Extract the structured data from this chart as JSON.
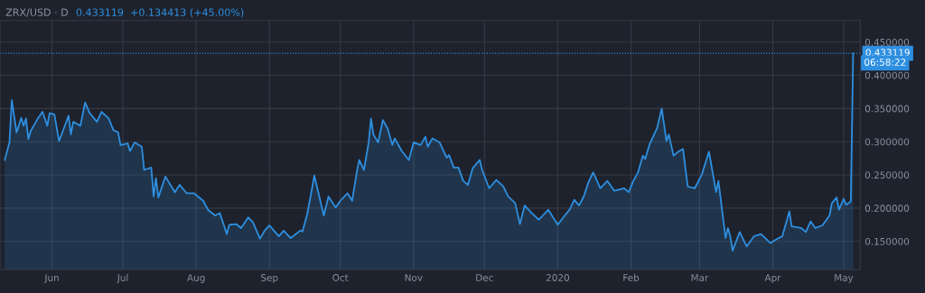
{
  "chart_data": {
    "type": "area",
    "title": "ZRX/USD · D",
    "subtitle": "0.433119  +0.134413 (+45.00%)",
    "x": [
      "2019-05-12",
      "2019-05-14",
      "2019-05-15",
      "2019-05-17",
      "2019-05-19",
      "2019-05-20",
      "2019-05-21",
      "2019-05-22",
      "2019-05-23",
      "2019-05-26",
      "2019-05-28",
      "2019-05-30",
      "2019-05-31",
      "2019-06-02",
      "2019-06-04",
      "2019-06-08",
      "2019-06-09",
      "2019-06-10",
      "2019-06-13",
      "2019-06-15",
      "2019-06-17",
      "2019-06-20",
      "2019-06-22",
      "2019-06-25",
      "2019-06-27",
      "2019-06-29",
      "2019-06-30",
      "2019-07-03",
      "2019-07-04",
      "2019-07-06",
      "2019-07-09",
      "2019-07-10",
      "2019-07-13",
      "2019-07-14",
      "2019-07-15",
      "2019-07-16",
      "2019-07-19",
      "2019-07-23",
      "2019-07-25",
      "2019-07-28",
      "2019-07-31",
      "2019-08-04",
      "2019-08-06",
      "2019-08-09",
      "2019-08-11",
      "2019-08-14",
      "2019-08-15",
      "2019-08-18",
      "2019-08-20",
      "2019-08-23",
      "2019-08-25",
      "2019-08-28",
      "2019-08-30",
      "2019-09-01",
      "2019-09-05",
      "2019-09-07",
      "2019-09-10",
      "2019-09-14",
      "2019-09-15",
      "2019-09-17",
      "2019-09-19",
      "2019-09-20",
      "2019-09-24",
      "2019-09-26",
      "2019-09-29",
      "2019-10-01",
      "2019-10-04",
      "2019-10-06",
      "2019-10-08",
      "2019-10-09",
      "2019-10-11",
      "2019-10-13",
      "2019-10-14",
      "2019-10-15",
      "2019-10-17",
      "2019-10-19",
      "2019-10-21",
      "2019-10-23",
      "2019-10-24",
      "2019-10-27",
      "2019-10-30",
      "2019-11-01",
      "2019-11-04",
      "2019-11-06",
      "2019-11-07",
      "2019-11-09",
      "2019-11-12",
      "2019-11-15",
      "2019-11-16",
      "2019-11-18",
      "2019-11-20",
      "2019-11-22",
      "2019-11-24",
      "2019-11-26",
      "2019-11-29",
      "2019-11-30",
      "2019-12-03",
      "2019-12-06",
      "2019-12-09",
      "2019-12-11",
      "2019-12-14",
      "2019-12-16",
      "2019-12-18",
      "2019-12-21",
      "2019-12-24",
      "2019-12-28",
      "2020-01-01",
      "2020-01-04",
      "2020-01-06",
      "2020-01-08",
      "2020-01-10",
      "2020-01-12",
      "2020-01-14",
      "2020-01-16",
      "2020-01-19",
      "2020-01-22",
      "2020-01-25",
      "2020-01-29",
      "2020-01-31",
      "2020-02-02",
      "2020-02-04",
      "2020-02-06",
      "2020-02-07",
      "2020-02-09",
      "2020-02-12",
      "2020-02-14",
      "2020-02-16",
      "2020-02-17",
      "2020-02-19",
      "2020-02-21",
      "2020-02-23",
      "2020-02-25",
      "2020-02-28",
      "2020-03-02",
      "2020-03-05",
      "2020-03-08",
      "2020-03-09",
      "2020-03-12",
      "2020-03-13",
      "2020-03-14",
      "2020-03-15",
      "2020-03-18",
      "2020-03-20",
      "2020-03-21",
      "2020-03-24",
      "2020-03-27",
      "2020-03-31",
      "2020-04-03",
      "2020-04-05",
      "2020-04-08",
      "2020-04-09",
      "2020-04-13",
      "2020-04-15",
      "2020-04-17",
      "2020-04-19",
      "2020-04-22",
      "2020-04-25",
      "2020-04-26",
      "2020-04-28",
      "2020-04-29",
      "2020-05-01",
      "2020-05-02",
      "2020-05-04",
      "2020-05-05"
    ],
    "series": [
      {
        "color": "#2e8fe0",
        "values": [
          0.2725,
          0.299,
          0.3625,
          0.314,
          0.336,
          0.324,
          0.335,
          0.304,
          0.316,
          0.335,
          0.345,
          0.324,
          0.343,
          0.341,
          0.301,
          0.339,
          0.311,
          0.33,
          0.324,
          0.359,
          0.343,
          0.33,
          0.345,
          0.335,
          0.3175,
          0.314,
          0.295,
          0.2975,
          0.286,
          0.299,
          0.2925,
          0.2575,
          0.261,
          0.2175,
          0.245,
          0.216,
          0.2475,
          0.224,
          0.235,
          0.2225,
          0.2225,
          0.211,
          0.1975,
          0.189,
          0.1925,
          0.161,
          0.175,
          0.176,
          0.17,
          0.186,
          0.179,
          0.154,
          0.166,
          0.174,
          0.1575,
          0.166,
          0.155,
          0.166,
          0.165,
          0.191,
          0.229,
          0.249,
          0.189,
          0.2175,
          0.201,
          0.211,
          0.2225,
          0.211,
          0.255,
          0.2725,
          0.2575,
          0.299,
          0.335,
          0.311,
          0.299,
          0.3325,
          0.32,
          0.295,
          0.305,
          0.286,
          0.2725,
          0.299,
          0.295,
          0.3075,
          0.2925,
          0.305,
          0.299,
          0.276,
          0.28,
          0.261,
          0.261,
          0.241,
          0.235,
          0.26,
          0.2725,
          0.2575,
          0.23,
          0.2425,
          0.2325,
          0.2175,
          0.2075,
          0.176,
          0.204,
          0.1925,
          0.1825,
          0.1975,
          0.175,
          0.189,
          0.1975,
          0.2125,
          0.204,
          0.2175,
          0.239,
          0.254,
          0.23,
          0.241,
          0.226,
          0.23,
          0.224,
          0.241,
          0.254,
          0.279,
          0.274,
          0.2975,
          0.32,
          0.35,
          0.301,
          0.311,
          0.279,
          0.285,
          0.289,
          0.2325,
          0.23,
          0.251,
          0.285,
          0.224,
          0.241,
          0.155,
          0.17,
          0.1575,
          0.136,
          0.164,
          0.149,
          0.1425,
          0.1575,
          0.161,
          0.1475,
          0.154,
          0.1575,
          0.195,
          0.1725,
          0.17,
          0.164,
          0.18,
          0.17,
          0.174,
          0.189,
          0.2075,
          0.216,
          0.1975,
          0.214,
          0.205,
          0.21,
          0.433119
        ]
      }
    ],
    "xlim": [
      "2019-05-10",
      "2020-05-08"
    ],
    "xticks": [
      {
        "value": "2019-06-01",
        "label": "Jun"
      },
      {
        "value": "2019-07-01",
        "label": "Jul"
      },
      {
        "value": "2019-08-01",
        "label": "Aug"
      },
      {
        "value": "2019-09-01",
        "label": "Sep"
      },
      {
        "value": "2019-10-01",
        "label": "Oct"
      },
      {
        "value": "2019-11-01",
        "label": "Nov"
      },
      {
        "value": "2019-12-01",
        "label": "Dec"
      },
      {
        "value": "2020-01-01",
        "label": "2020"
      },
      {
        "value": "2020-02-01",
        "label": "Feb"
      },
      {
        "value": "2020-03-01",
        "label": "Mar"
      },
      {
        "value": "2020-04-01",
        "label": "Apr"
      },
      {
        "value": "2020-05-01",
        "label": "May"
      }
    ],
    "ylim": [
      0.1075,
      0.4825
    ],
    "yticks": [
      {
        "value": 0.15,
        "label": "0.150000"
      },
      {
        "value": 0.2,
        "label": "0.200000"
      },
      {
        "value": 0.25,
        "label": "0.250000"
      },
      {
        "value": 0.3,
        "label": "0.300000"
      },
      {
        "value": 0.35,
        "label": "0.350000"
      },
      {
        "value": 0.4,
        "label": "0.400000"
      },
      {
        "value": 0.45,
        "label": "0.450000"
      }
    ],
    "ref_lines": [
      {
        "axis": "y",
        "value": 0.433119,
        "label": "0.433119",
        "color": "#2e8fe0",
        "line_style": "dotted"
      }
    ],
    "annotations": [
      "06:58:22"
    ],
    "grid": true,
    "legend": false
  }
}
